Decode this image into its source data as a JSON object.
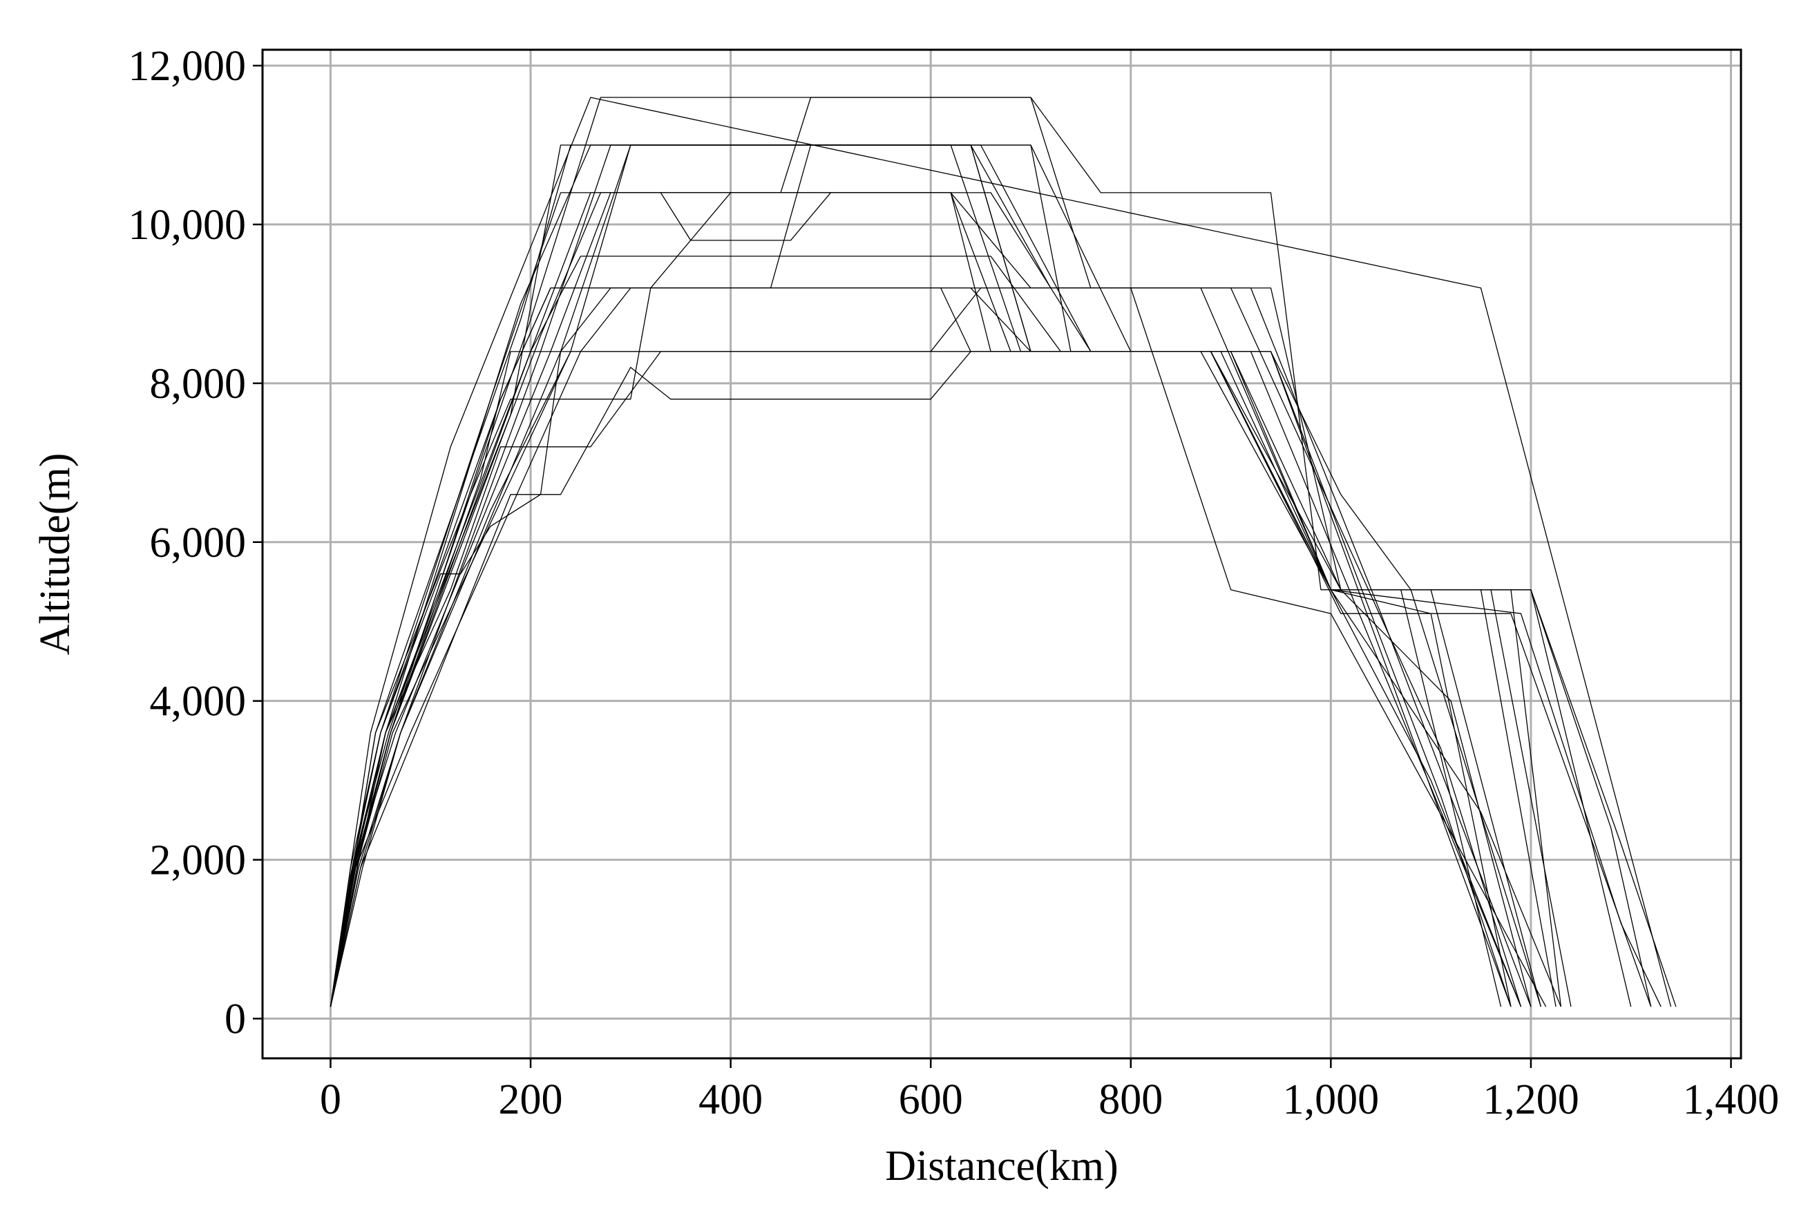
{
  "chart_data": {
    "type": "line",
    "title": "",
    "xlabel": "Distance(km)",
    "ylabel": "Altitude(m)",
    "xlim": [
      -68,
      1410
    ],
    "ylim": [
      -500,
      12200
    ],
    "xticks": [
      0,
      200,
      400,
      600,
      800,
      1000,
      1200,
      1400
    ],
    "xtick_labels": [
      "0",
      "200",
      "400",
      "600",
      "800",
      "1,000",
      "1,200",
      "1,400"
    ],
    "yticks": [
      0,
      2000,
      4000,
      6000,
      8000,
      10000,
      12000
    ],
    "ytick_labels": [
      "0",
      "2,000",
      "4,000",
      "6,000",
      "8,000",
      "10,000",
      "12,000"
    ],
    "grid": true,
    "legend": "none",
    "line_color": "#000000",
    "series": [
      {
        "x": [
          0,
          20,
          40,
          120,
          260,
          1150,
          1340
        ],
        "y": [
          150,
          1900,
          3600,
          7200,
          11600,
          9200,
          150
        ]
      },
      {
        "x": [
          0,
          25,
          55,
          180,
          230,
          650,
          760,
          940,
          1110,
          1180
        ],
        "y": [
          150,
          2000,
          3600,
          7600,
          11000,
          11000,
          8400,
          8400,
          2800,
          150
        ]
      },
      {
        "x": [
          0,
          20,
          50,
          160,
          230,
          620,
          700,
          920,
          1050,
          1200
        ],
        "y": [
          150,
          1800,
          3600,
          7800,
          10400,
          10400,
          9200,
          9200,
          5100,
          150
        ]
      },
      {
        "x": [
          0,
          30,
          60,
          150,
          180,
          880,
          1000,
          1100,
          1210
        ],
        "y": [
          150,
          2100,
          3600,
          6800,
          8400,
          8400,
          5400,
          5400,
          150
        ]
      },
      {
        "x": [
          0,
          25,
          60,
          170,
          220,
          800,
          900,
          1000,
          1215
        ],
        "y": [
          150,
          1900,
          3600,
          7800,
          9200,
          9200,
          5400,
          5100,
          150
        ]
      },
      {
        "x": [
          0,
          20,
          45,
          190,
          240,
          700,
          800,
          940,
          1180
        ],
        "y": [
          150,
          1700,
          3600,
          8800,
          11000,
          11000,
          8400,
          8400,
          150
        ]
      },
      {
        "x": [
          0,
          22,
          58,
          200,
          270,
          700,
          770,
          940,
          990,
          1080,
          1210
        ],
        "y": [
          150,
          1900,
          3600,
          8800,
          11600,
          11600,
          10400,
          10400,
          5400,
          5400,
          150
        ]
      },
      {
        "x": [
          0,
          28,
          70,
          210,
          280,
          640,
          720,
          900,
          1110,
          1190
        ],
        "y": [
          150,
          1900,
          3600,
          8400,
          11000,
          11000,
          9200,
          9200,
          3400,
          150
        ]
      },
      {
        "x": [
          0,
          32,
          70,
          160,
          240,
          600,
          650,
          870,
          1000,
          1190,
          1290,
          1330
        ],
        "y": [
          150,
          1900,
          3600,
          6400,
          8400,
          8400,
          9200,
          9200,
          5400,
          5100,
          1200,
          150
        ]
      },
      {
        "x": [
          0,
          25,
          80,
          250,
          300,
          610,
          640,
          880,
          1010,
          1180,
          1320
        ],
        "y": [
          150,
          1900,
          3600,
          8400,
          9200,
          9200,
          8400,
          8400,
          5100,
          5100,
          150
        ]
      },
      {
        "x": [
          0,
          30,
          85,
          180,
          230,
          300,
          340,
          600,
          640,
          880,
          1000,
          1150,
          1230
        ],
        "y": [
          150,
          1900,
          3600,
          6600,
          6600,
          8200,
          7800,
          7800,
          8400,
          8400,
          5400,
          2600,
          150
        ]
      },
      {
        "x": [
          0,
          20,
          55,
          190,
          260,
          700,
          740,
          920,
          1130,
          1190
        ],
        "y": [
          150,
          1700,
          3600,
          9000,
          11000,
          11000,
          8400,
          8400,
          2000,
          150
        ]
      },
      {
        "x": [
          0,
          20,
          50,
          170,
          220,
          320,
          400,
          660,
          760,
          940,
          1010,
          1080,
          1180,
          1230
        ],
        "y": [
          150,
          1800,
          3600,
          7800,
          9200,
          9200,
          10400,
          10400,
          8400,
          8400,
          6600,
          5400,
          5400,
          150
        ]
      },
      {
        "x": [
          0,
          25,
          60,
          200,
          260,
          450,
          480,
          700,
          760,
          940,
          1010,
          1150,
          1225
        ],
        "y": [
          150,
          1900,
          3600,
          8400,
          10400,
          10400,
          11600,
          11600,
          9200,
          9200,
          5400,
          5400,
          150
        ]
      },
      {
        "x": [
          0,
          25,
          65,
          220,
          280,
          620,
          660,
          870,
          1000,
          1200,
          1290,
          1345
        ],
        "y": [
          150,
          2000,
          3600,
          8400,
          10400,
          10400,
          8400,
          8400,
          5400,
          5400,
          2200,
          150
        ]
      },
      {
        "x": [
          0,
          22,
          55,
          120,
          170,
          260,
          330,
          880,
          1000,
          1100,
          1190
        ],
        "y": [
          150,
          1900,
          3600,
          5400,
          7200,
          7200,
          8400,
          8400,
          5400,
          3000,
          150
        ]
      },
      {
        "x": [
          0,
          20,
          50,
          110,
          130,
          160,
          210,
          230,
          280,
          640,
          700,
          880,
          1000,
          1070,
          1170
        ],
        "y": [
          150,
          1900,
          3600,
          5600,
          5600,
          6200,
          6600,
          8400,
          9200,
          9200,
          8400,
          8400,
          5400,
          5400,
          150
        ]
      },
      {
        "x": [
          0,
          28,
          62,
          240,
          300,
          620,
          690,
          880,
          1010,
          1120,
          1200
        ],
        "y": [
          150,
          2000,
          3600,
          8400,
          11000,
          11000,
          8400,
          8400,
          5400,
          4000,
          150
        ]
      },
      {
        "x": [
          0,
          20,
          45,
          140,
          180,
          300,
          320,
          440,
          480,
          640,
          700,
          900,
          1000,
          1200,
          1280,
          1320
        ],
        "y": [
          150,
          1700,
          3600,
          6600,
          7800,
          7800,
          9200,
          9200,
          11000,
          11000,
          8400,
          8400,
          5400,
          5400,
          2400,
          150
        ]
      },
      {
        "x": [
          0,
          26,
          60,
          210,
          270,
          330,
          360,
          460,
          500,
          620,
          680,
          900,
          1010,
          1160,
          1240
        ],
        "y": [
          150,
          2000,
          3600,
          8600,
          10400,
          10400,
          9800,
          9800,
          10400,
          10400,
          8400,
          8400,
          5400,
          5400,
          150
        ]
      },
      {
        "x": [
          0,
          25,
          55,
          200,
          250,
          660,
          730,
          880,
          1000,
          1100,
          1180
        ],
        "y": [
          150,
          1800,
          3600,
          8400,
          9600,
          9600,
          8400,
          8400,
          5400,
          5100,
          150
        ]
      },
      {
        "x": [
          0,
          30,
          70,
          230,
          300,
          640,
          700,
          890,
          1000,
          1200,
          1250,
          1300
        ],
        "y": [
          150,
          1900,
          3600,
          8400,
          11000,
          11000,
          8400,
          8400,
          5400,
          5400,
          2800,
          150
        ]
      }
    ]
  }
}
